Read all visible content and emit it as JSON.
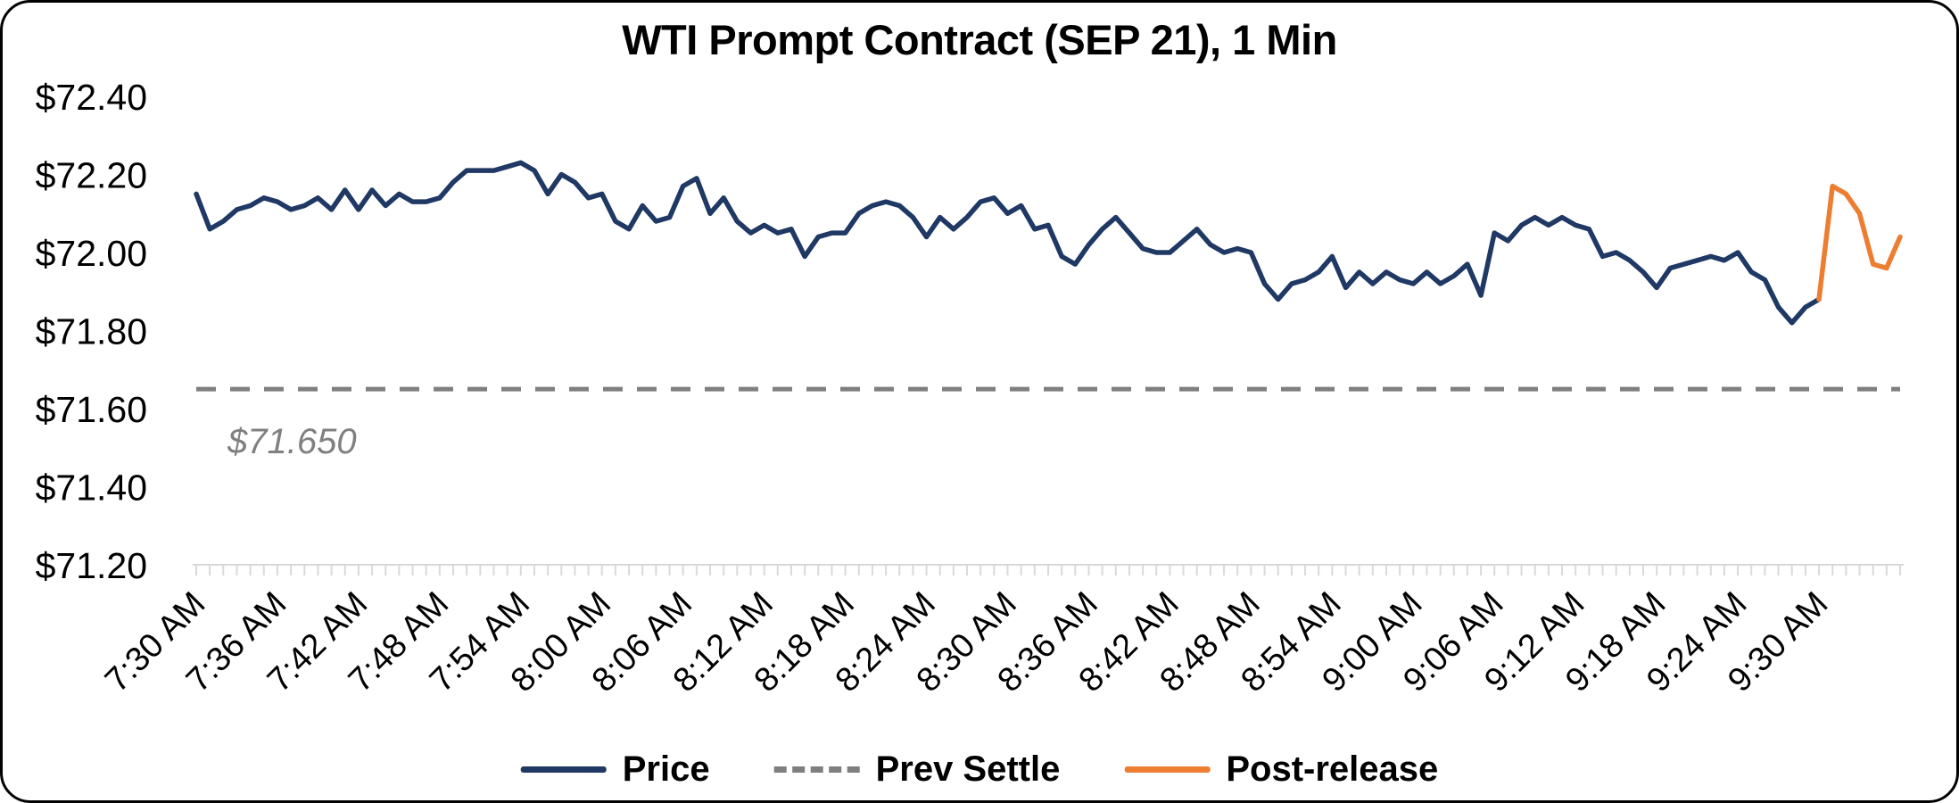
{
  "title": "WTI Prompt Contract (SEP 21), 1 Min",
  "legend": {
    "price": "Price",
    "prev_settle": "Prev Settle",
    "post_release": "Post-release"
  },
  "colors": {
    "price": "#1F3864",
    "prev_settle": "#7F7F7F",
    "post_release": "#ED7D31",
    "tick": "#D9D9D9",
    "annotation": "#808080"
  },
  "chart_data": {
    "type": "line",
    "title": "WTI Prompt Contract (SEP 21), 1 Min",
    "xlabel": "",
    "ylabel": "",
    "ylim": [
      71.2,
      72.4
    ],
    "y_tick_labels": [
      "$72.40",
      "$72.20",
      "$72.00",
      "$71.80",
      "$71.60",
      "$71.40",
      "$71.20"
    ],
    "y_tick_values": [
      72.4,
      72.2,
      72.0,
      71.8,
      71.6,
      71.4,
      71.2
    ],
    "grid": false,
    "legend_position": "bottom",
    "x_start_time": "7:30 AM",
    "interval_minutes": 1,
    "x_domain_minutes": [
      0,
      126
    ],
    "x_tick_minutes": [
      0,
      6,
      12,
      18,
      24,
      30,
      36,
      42,
      48,
      54,
      60,
      66,
      72,
      78,
      84,
      90,
      96,
      102,
      108,
      114,
      120
    ],
    "x_tick_labels": [
      "7:30 AM",
      "7:36 AM",
      "7:42 AM",
      "7:48 AM",
      "7:54 AM",
      "8:00 AM",
      "8:06 AM",
      "8:12 AM",
      "8:18 AM",
      "8:24 AM",
      "8:30 AM",
      "8:36 AM",
      "8:42 AM",
      "8:48 AM",
      "8:54 AM",
      "9:00 AM",
      "9:06 AM",
      "9:12 AM",
      "9:18 AM",
      "9:24 AM",
      "9:30 AM"
    ],
    "prev_settle": 71.65,
    "prev_settle_annotation": "$71.650",
    "series": [
      {
        "name": "Price",
        "color": "#1F3864",
        "start_minute": 0,
        "values": [
          72.15,
          72.06,
          72.08,
          72.11,
          72.12,
          72.14,
          72.13,
          72.11,
          72.12,
          72.14,
          72.11,
          72.16,
          72.11,
          72.16,
          72.12,
          72.15,
          72.13,
          72.13,
          72.14,
          72.18,
          72.21,
          72.21,
          72.21,
          72.22,
          72.23,
          72.21,
          72.15,
          72.2,
          72.18,
          72.14,
          72.15,
          72.08,
          72.06,
          72.12,
          72.08,
          72.09,
          72.17,
          72.19,
          72.1,
          72.14,
          72.08,
          72.05,
          72.07,
          72.05,
          72.06,
          71.99,
          72.04,
          72.05,
          72.05,
          72.1,
          72.12,
          72.13,
          72.12,
          72.09,
          72.04,
          72.09,
          72.06,
          72.09,
          72.13,
          72.14,
          72.1,
          72.12,
          72.06,
          72.07,
          71.99,
          71.97,
          72.02,
          72.06,
          72.09,
          72.05,
          72.01,
          72.0,
          72.0,
          72.03,
          72.06,
          72.02,
          72.0,
          72.01,
          72.0,
          71.92,
          71.88,
          71.92,
          71.93,
          71.95,
          71.99,
          71.91,
          71.95,
          71.92,
          71.95,
          71.93,
          71.92,
          71.95,
          71.92,
          71.94,
          71.97,
          71.89,
          72.05,
          72.03,
          72.07,
          72.09,
          72.07,
          72.09,
          72.07,
          72.06,
          71.99,
          72.0,
          71.98,
          71.95,
          71.91,
          71.96,
          71.97,
          71.98,
          71.99,
          71.98,
          72.0,
          71.95,
          71.93,
          71.86,
          71.82,
          71.86,
          71.88
        ]
      },
      {
        "name": "Post-release",
        "color": "#ED7D31",
        "start_minute": 120,
        "values": [
          71.88,
          72.17,
          72.15,
          72.1,
          71.97,
          71.96,
          72.04
        ]
      }
    ]
  }
}
